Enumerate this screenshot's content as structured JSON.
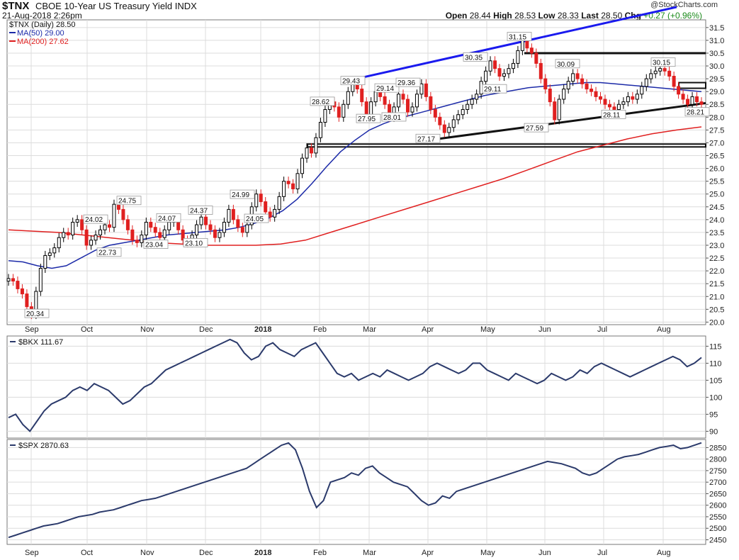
{
  "header": {
    "symbol": "$TNX",
    "name": "CBOE 10-Year US Treasury Yield INDX",
    "date": "21-Aug-2018 2:26pm",
    "logo": "@StockCharts.com",
    "open_label": "Open",
    "open": "28.44",
    "high_label": "High",
    "high": "28.53",
    "low_label": "Low",
    "low": "28.33",
    "last_label": "Last",
    "last": "28.50",
    "chg_label": "Chg",
    "chg": "+0.27 (+0.96%)"
  },
  "colors": {
    "up_candle": "#000000",
    "down_candle": "#e02020",
    "ma50": "#1c2aa8",
    "ma200": "#e02020",
    "trend_upper": "#1a1aee",
    "panel_line": "#2b3a6b",
    "grid": "#dcdcdc",
    "ohlc_chg": "#1a8a1a"
  },
  "chart_data": [
    {
      "type": "line",
      "title": "$TNX (Daily) 28.50",
      "legend": [
        {
          "name": "$TNX (Daily) 28.50"
        },
        {
          "name": "MA(50) 29.00"
        },
        {
          "name": "MA(200) 27.62"
        }
      ],
      "x_tick_labels": [
        "Sep",
        "Oct",
        "Nov",
        "Dec",
        "2018",
        "Feb",
        "Mar",
        "Apr",
        "May",
        "Jun",
        "Jul",
        "Aug"
      ],
      "y_ticks": [
        "20.0",
        "20.5",
        "21.0",
        "21.5",
        "22.0",
        "22.5",
        "23.0",
        "23.5",
        "24.0",
        "24.5",
        "25.0",
        "25.5",
        "26.0",
        "26.5",
        "27.0",
        "27.5",
        "28.0",
        "28.5",
        "29.0",
        "29.5",
        "30.0",
        "30.5",
        "31.0",
        "31.5"
      ],
      "ylim": [
        19.9,
        31.8
      ],
      "price_series": [
        21.7,
        21.6,
        21.3,
        21.1,
        20.6,
        20.3,
        21.2,
        22.1,
        22.6,
        22.7,
        22.9,
        23.3,
        23.5,
        23.4,
        23.9,
        24.0,
        23.6,
        23.0,
        23.2,
        23.4,
        23.6,
        23.8,
        23.7,
        24.6,
        24.4,
        24.0,
        23.6,
        23.2,
        23.1,
        23.4,
        23.9,
        23.7,
        23.5,
        23.3,
        23.6,
        23.9,
        24.0,
        23.6,
        23.2,
        23.1,
        23.4,
        23.8,
        24.1,
        23.8,
        23.6,
        23.3,
        23.5,
        23.9,
        24.4,
        24.0,
        23.7,
        23.5,
        23.8,
        24.5,
        25.0,
        24.7,
        24.3,
        24.1,
        24.4,
        24.9,
        25.5,
        25.4,
        25.2,
        25.8,
        26.4,
        26.8,
        26.6,
        27.2,
        27.8,
        28.3,
        28.6,
        28.4,
        28.0,
        28.5,
        29.0,
        29.4,
        29.1,
        28.6,
        28.1,
        28.6,
        29.0,
        28.8,
        28.5,
        28.0,
        28.4,
        28.9,
        28.7,
        28.2,
        28.4,
        28.9,
        29.3,
        28.8,
        28.3,
        28.0,
        27.7,
        27.4,
        27.6,
        27.9,
        28.1,
        28.3,
        28.5,
        28.7,
        28.9,
        29.4,
        29.8,
        30.2,
        29.9,
        29.6,
        29.7,
        29.9,
        30.1,
        30.6,
        31.1,
        30.7,
        30.5,
        30.1,
        29.5,
        29.1,
        28.6,
        27.9,
        28.7,
        29.1,
        29.4,
        29.7,
        29.5,
        29.3,
        29.1,
        29.0,
        28.8,
        28.7,
        28.5,
        28.4,
        28.3,
        28.5,
        28.6,
        28.8,
        28.7,
        28.9,
        29.2,
        29.5,
        29.7,
        29.8,
        29.9,
        29.8,
        29.6,
        29.2,
        28.9,
        28.7,
        28.5,
        28.8,
        28.6,
        28.5
      ],
      "ma50": [
        22.4,
        22.35,
        22.2,
        22.1,
        22.2,
        22.5,
        22.8,
        23.0,
        23.1,
        23.2,
        23.3,
        23.4,
        23.45,
        23.5,
        23.55,
        23.6,
        23.7,
        23.85,
        24.05,
        24.35,
        24.8,
        25.4,
        26.05,
        26.65,
        27.1,
        27.5,
        27.75,
        27.95,
        28.1,
        28.25,
        28.4,
        28.55,
        28.7,
        28.85,
        28.95,
        29.05,
        29.15,
        29.2,
        29.25,
        29.3,
        29.35,
        29.35,
        29.3,
        29.25,
        29.2,
        29.15,
        29.1,
        29.05,
        29.0
      ],
      "ma200": [
        23.6,
        23.55,
        23.5,
        23.4,
        23.3,
        23.2,
        23.1,
        23.05,
        23.0,
        23.0,
        23.0,
        23.05,
        23.2,
        23.5,
        23.8,
        24.1,
        24.4,
        24.7,
        25.0,
        25.3,
        25.6,
        25.95,
        26.3,
        26.65,
        26.9,
        27.15,
        27.35,
        27.5,
        27.62
      ],
      "annotations": [
        "20.34",
        "22.73",
        "24.02",
        "24.75",
        "24.07",
        "23.04",
        "24.37",
        "23.10",
        "24.99",
        "24.05",
        "28.62",
        "29.43",
        "27.95",
        "29.14",
        "28.01",
        "29.36",
        "27.17",
        "30.35",
        "29.11",
        "31.15",
        "27.59",
        "30.09",
        "28.11",
        "30.15",
        "28.21"
      ]
    },
    {
      "type": "line",
      "title": "$BKX 111.67",
      "legend": [
        {
          "name": "$BKX 111.67"
        }
      ],
      "y_ticks": [
        "90",
        "95",
        "100",
        "105",
        "110",
        "115"
      ],
      "ylim": [
        88,
        118
      ],
      "values": [
        94,
        95,
        92,
        90,
        93,
        96,
        98,
        99,
        100,
        102,
        103,
        102,
        104,
        103,
        102,
        100,
        98,
        99,
        101,
        103,
        104,
        106,
        108,
        109,
        110,
        111,
        112,
        113,
        114,
        115,
        116,
        117,
        116,
        113,
        111,
        112,
        115,
        116,
        114,
        113,
        112,
        114,
        115,
        116,
        113,
        110,
        107,
        106,
        107,
        105,
        106,
        107,
        106,
        108,
        107,
        106,
        105,
        106,
        107,
        109,
        110,
        109,
        108,
        107,
        108,
        110,
        110,
        108,
        107,
        106,
        105,
        107,
        106,
        105,
        104,
        105,
        107,
        106,
        105,
        106,
        108,
        107,
        109,
        110,
        109,
        108,
        107,
        106,
        107,
        108,
        109,
        110,
        111,
        112,
        111,
        109,
        110,
        111.67
      ]
    },
    {
      "type": "line",
      "title": "$SPX 2870.63",
      "legend": [
        {
          "name": "$SPX 2870.63"
        }
      ],
      "y_ticks": [
        "2450",
        "2500",
        "2550",
        "2600",
        "2650",
        "2700",
        "2750",
        "2800",
        "2850"
      ],
      "ylim": [
        2430,
        2885
      ],
      "values": [
        2460,
        2470,
        2480,
        2490,
        2500,
        2510,
        2515,
        2520,
        2530,
        2540,
        2550,
        2555,
        2560,
        2570,
        2575,
        2580,
        2590,
        2600,
        2610,
        2620,
        2625,
        2630,
        2640,
        2650,
        2660,
        2670,
        2680,
        2690,
        2700,
        2710,
        2720,
        2730,
        2740,
        2750,
        2760,
        2780,
        2800,
        2820,
        2840,
        2860,
        2870,
        2840,
        2760,
        2660,
        2590,
        2620,
        2700,
        2710,
        2720,
        2740,
        2730,
        2760,
        2770,
        2740,
        2720,
        2700,
        2690,
        2680,
        2650,
        2620,
        2600,
        2610,
        2640,
        2630,
        2660,
        2670,
        2680,
        2690,
        2700,
        2710,
        2720,
        2730,
        2740,
        2750,
        2760,
        2770,
        2780,
        2790,
        2785,
        2780,
        2770,
        2760,
        2740,
        2730,
        2740,
        2760,
        2780,
        2800,
        2810,
        2815,
        2820,
        2830,
        2840,
        2850,
        2855,
        2860,
        2845,
        2850,
        2860,
        2870.63
      ]
    }
  ]
}
